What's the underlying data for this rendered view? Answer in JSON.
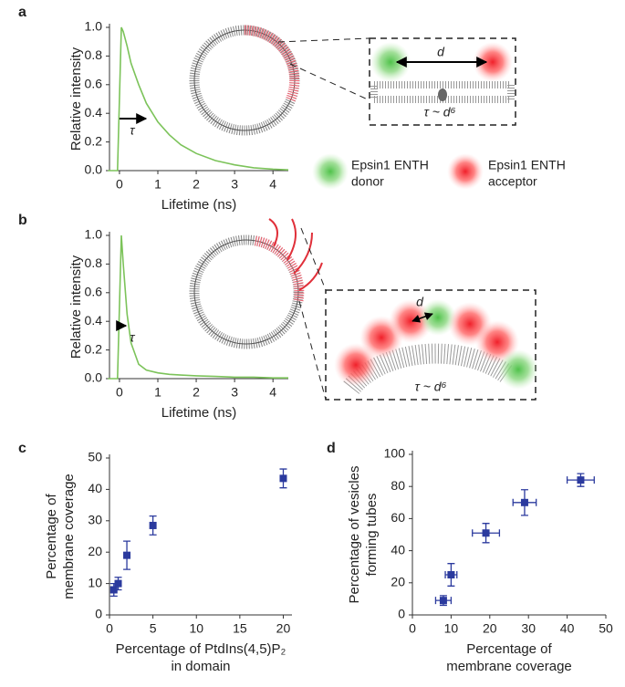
{
  "chart_data": [
    {
      "type": "line",
      "panel": "a",
      "xlabel": "Lifetime (ns)",
      "ylabel": "Relative intensity",
      "annotation": "τ",
      "color": "#7cc35a",
      "x": [
        -0.3,
        -0.05,
        0,
        0.05,
        0.1,
        0.2,
        0.3,
        0.5,
        0.7,
        1.0,
        1.3,
        1.6,
        2.0,
        2.5,
        3.0,
        3.5,
        4.0,
        4.4
      ],
      "values": [
        0,
        0,
        0.5,
        1.0,
        0.97,
        0.87,
        0.75,
        0.6,
        0.47,
        0.34,
        0.25,
        0.18,
        0.12,
        0.07,
        0.04,
        0.02,
        0.01,
        0.005
      ],
      "xlim": [
        -0.26,
        4.4
      ],
      "ylim": [
        0,
        1.0
      ],
      "xticks": [
        0,
        1,
        2,
        3,
        4
      ],
      "yticks": [
        {
          "value": 0,
          "label": "0.0"
        },
        0.2,
        0.4,
        0.6,
        0.8,
        {
          "value": 1,
          "label": "1.0"
        }
      ]
    },
    {
      "type": "line",
      "panel": "b",
      "xlabel": "Lifetime (ns)",
      "ylabel": "Relative intensity",
      "annotation": "τ",
      "color": "#7cc35a",
      "x": [
        -0.3,
        -0.05,
        0,
        0.05,
        0.1,
        0.2,
        0.3,
        0.5,
        0.7,
        1.0,
        1.3,
        1.6,
        2.0,
        2.5,
        3.0,
        3.5,
        4.0,
        4.4
      ],
      "values": [
        0,
        0,
        0.5,
        1.0,
        0.8,
        0.45,
        0.25,
        0.1,
        0.06,
        0.04,
        0.03,
        0.025,
        0.02,
        0.015,
        0.01,
        0.01,
        0.005,
        0.005
      ],
      "xlim": [
        -0.26,
        4.4
      ],
      "ylim": [
        0,
        1.0
      ],
      "xticks": [
        0,
        1,
        2,
        3,
        4
      ],
      "yticks": [
        {
          "value": 0,
          "label": "0.0"
        },
        0.2,
        0.4,
        0.6,
        0.8,
        {
          "value": 1,
          "label": "1.0"
        }
      ]
    },
    {
      "type": "scatter",
      "panel": "c",
      "xlabel": [
        "Percentage of PtdIns(4,5)P₂",
        "in domain"
      ],
      "ylabel": [
        "Percentage of",
        "membrane coverage"
      ],
      "color": "#2b3a9e",
      "x": [
        0.5,
        1,
        2,
        5,
        20
      ],
      "values": [
        8,
        10,
        19,
        28.5,
        43.5
      ],
      "yerr": [
        2,
        2,
        4.5,
        3,
        3
      ],
      "xlim": [
        0,
        21
      ],
      "ylim": [
        0,
        50
      ],
      "xticks": [
        0,
        5,
        10,
        15,
        20
      ],
      "yticks": [
        0,
        10,
        20,
        30,
        40,
        50
      ]
    },
    {
      "type": "scatter",
      "panel": "d",
      "xlabel": [
        "Percentage of",
        "membrane coverage"
      ],
      "ylabel": [
        "Percentage of vesicles",
        "forming tubes"
      ],
      "color": "#2b3a9e",
      "x": [
        8,
        10,
        19,
        29,
        43.5
      ],
      "values": [
        9,
        25,
        51,
        70,
        84
      ],
      "xerr": [
        2,
        1.5,
        3.5,
        3,
        3.5
      ],
      "yerr": [
        3,
        7,
        6,
        8,
        4
      ],
      "xlim": [
        0,
        50
      ],
      "ylim": [
        0,
        100
      ],
      "xticks": [
        0,
        10,
        20,
        30,
        40,
        50
      ],
      "yticks": [
        0,
        20,
        40,
        60,
        80,
        100
      ]
    }
  ],
  "diagram": {
    "distance": "d",
    "relation": "τ ~ d⁶",
    "donor": [
      "Epsin1 ENTH",
      "donor"
    ],
    "acceptor": [
      "Epsin1 ENTH",
      "acceptor"
    ]
  }
}
